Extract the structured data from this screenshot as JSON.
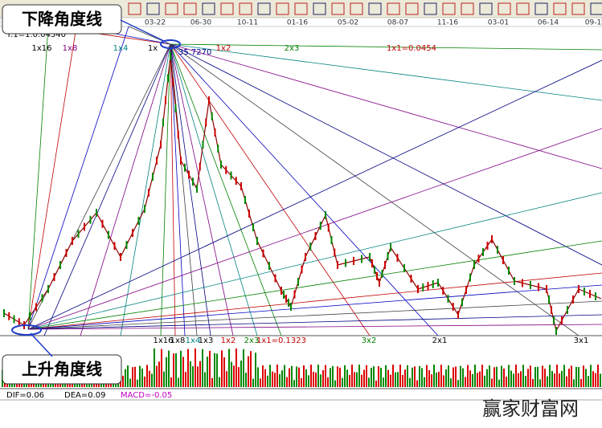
{
  "toolbar": {
    "dates": [
      "03-22",
      "06-30",
      "10-11",
      "01-16",
      "05-02",
      "08-07",
      "11-16",
      "03-01",
      "06-14",
      "09-1"
    ]
  },
  "header": {
    "scale_label": "T:1=1.0.04540"
  },
  "annotations": {
    "falling": "下降角度线",
    "rising": "上升角度线"
  },
  "top_fan": {
    "peak_label": "35.7270",
    "labels": [
      "1x16",
      "1x8",
      "1x4",
      "1x",
      "1x2",
      "2x3",
      "1x1=0.0454"
    ]
  },
  "bottom_fan": {
    "labels": [
      "1x16",
      "1x8",
      "1x4",
      "1x3",
      "1x2",
      "2x3",
      "1x1=0.1323",
      "3x2",
      "2x1",
      "3x1"
    ]
  },
  "indicator": {
    "dif": "DIF=0.06",
    "dea": "DEA=0.09",
    "macd": "MACD=-0.05"
  },
  "watermark": "赢家财富网"
}
